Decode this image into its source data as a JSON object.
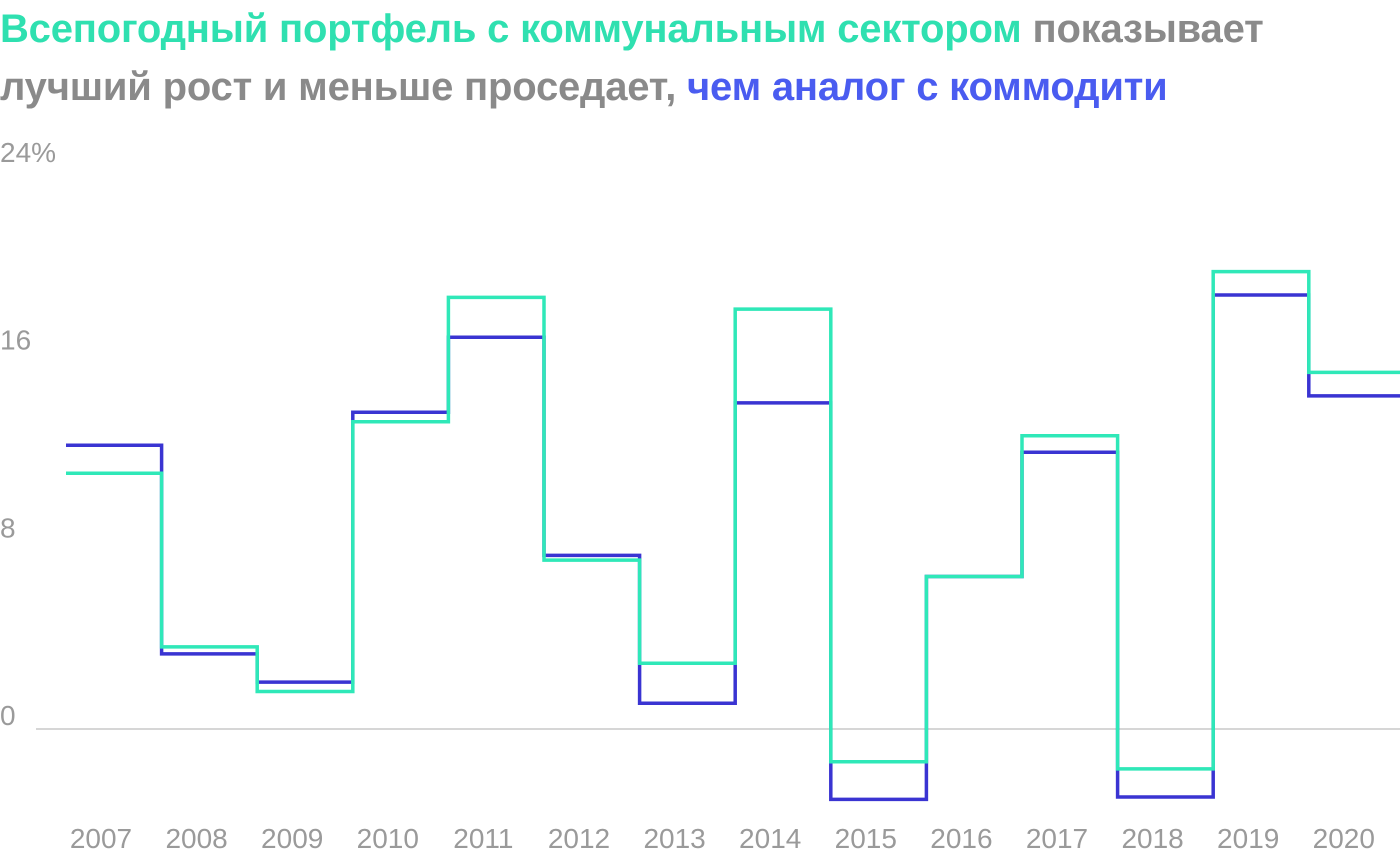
{
  "title": {
    "part1": "Всепогодный портфель с коммунальным сектором",
    "part2": " показывает лучший рост и меньше проседает, ",
    "part3": "чем аналог с коммодити"
  },
  "colors": {
    "utilities_portfolio": "#2fe8b8",
    "commodities_portfolio": "#3a34d2",
    "title_green": "#2fe0b0",
    "title_gray": "#8a8a8a",
    "title_blue": "#4a5cf0",
    "axis_text": "#9a9a9a",
    "zero_line": "#c8c8c8"
  },
  "chart_data": {
    "type": "line",
    "step": true,
    "x": [
      "2007",
      "2008",
      "2009",
      "2010",
      "2011",
      "2012",
      "2013",
      "2014",
      "2015",
      "2016",
      "2017",
      "2018",
      "2019",
      "2020"
    ],
    "series": [
      {
        "values": [
          12.1,
          3.2,
          2.0,
          13.5,
          16.7,
          7.4,
          1.1,
          13.9,
          -3.0,
          6.5,
          11.8,
          -2.9,
          18.5,
          14.2
        ]
      },
      {
        "values": [
          10.9,
          3.5,
          1.6,
          13.1,
          18.4,
          7.2,
          2.8,
          17.9,
          -1.4,
          6.5,
          12.5,
          -1.7,
          19.5,
          15.2
        ]
      }
    ],
    "y_ticks": [
      "24%",
      "16",
      "8",
      "0"
    ],
    "y_tick_values": [
      24,
      16,
      8,
      0
    ],
    "ylim": [
      -4,
      24
    ],
    "grid": false,
    "zero_line": true,
    "legend": "none"
  }
}
